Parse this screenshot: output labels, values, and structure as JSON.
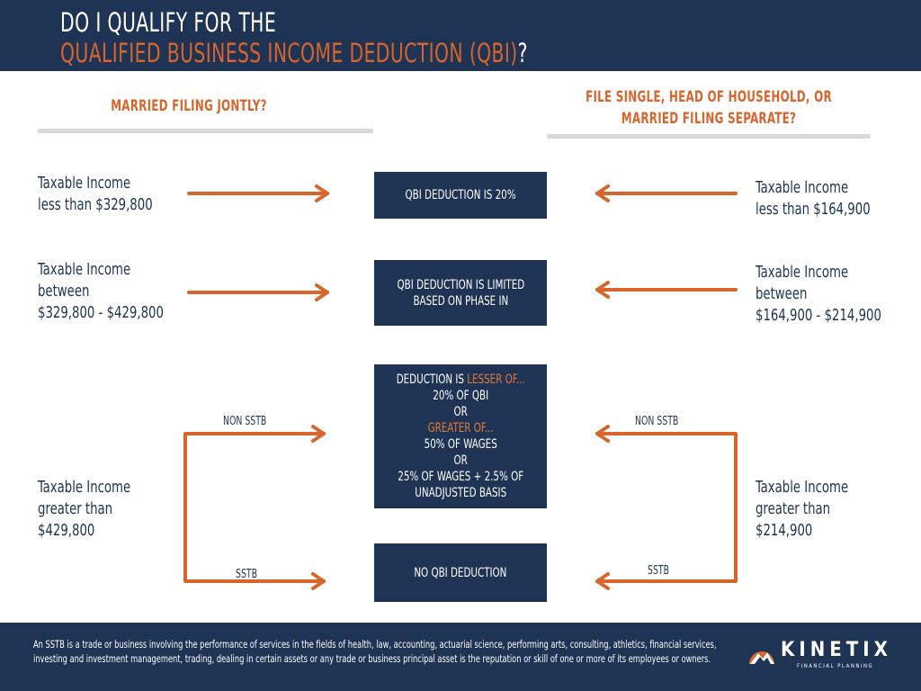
{
  "title": {
    "line1": "DO I QUALIFY FOR THE",
    "line2_highlight": "QUALIFIED BUSINESS INCOME DEDUCTION (QBI)",
    "line2_suffix": "?"
  },
  "left_column": {
    "heading": "MARRIED FILING JONTLY?",
    "rows": [
      {
        "lines": [
          "Taxable Income",
          "less than $329,800"
        ]
      },
      {
        "lines": [
          "Taxable Income",
          "between",
          "$329,800 - $429,800"
        ]
      },
      {
        "lines": [
          "Taxable Income",
          "greater than",
          "$429,800"
        ]
      }
    ],
    "branch_non_sstb": "NON SSTB",
    "branch_sstb": "SSTB"
  },
  "right_column": {
    "heading_line1": "FILE SINGLE, HEAD OF HOUSEHOLD, OR",
    "heading_line2": "MARRIED FILING SEPARATE?",
    "rows": [
      {
        "lines": [
          "Taxable Income",
          "less than $164,900"
        ]
      },
      {
        "lines": [
          "Taxable Income",
          "between",
          "$164,900 - $214,900"
        ]
      },
      {
        "lines": [
          "Taxable Income",
          "greater than",
          "$214,900"
        ]
      }
    ],
    "branch_non_sstb": "NON SSTB",
    "branch_sstb": "SSTB"
  },
  "outcomes": {
    "box1": "QBI DEDUCTION IS 20%",
    "box2_line1": "QBI DEDUCTION IS LIMITED",
    "box2_line2": "BASED ON PHASE IN",
    "box3": {
      "line1_prefix": "DEDUCTION IS ",
      "line1_highlight": "LESSER OF...",
      "line2": "20% OF QBI",
      "line3": "OR",
      "line4_highlight": "GREATER OF...",
      "line5": "50% OF WAGES",
      "line6": "OR",
      "line7": "25% OF WAGES + 2.5% OF",
      "line8": "UNADJUSTED BASIS"
    },
    "box4": "NO QBI DEDUCTION"
  },
  "footer": {
    "footnote": "An SSTB is a trade or business involving the performance of services in the fields of health, law, accounting, actuarial science, performing arts, consulting, athletics, financial services, investing and investment management, trading, dealing in certain assets or any trade or business principal asset is the reputation or skill of one or more of its employees or owners.",
    "logo_word": "KINETIX",
    "logo_sub": "FINANCIAL PLANNING"
  },
  "colors": {
    "navy": "#1f3354",
    "orange": "#d7652c",
    "rule_gray": "#d9d9d9"
  }
}
